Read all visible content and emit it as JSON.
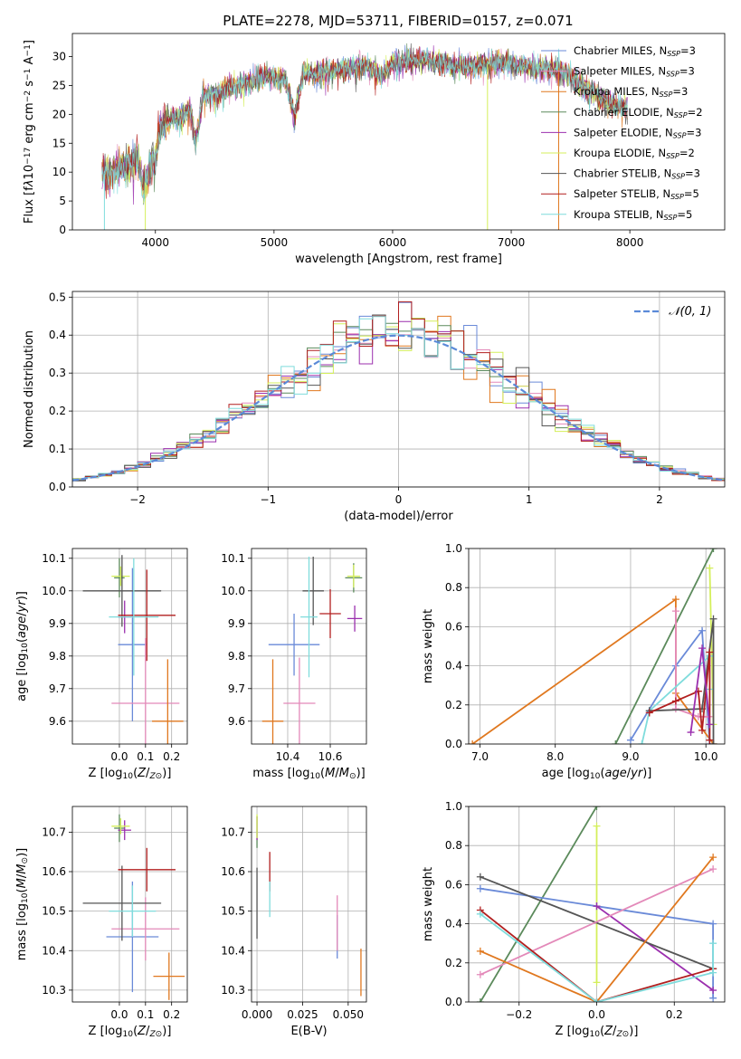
{
  "figure": {
    "title": "PLATE=2278, MJD=53711, FIBERID=0157, z=0.071"
  },
  "colors": {
    "c_miles": "#6a8ad8",
    "s_miles": "#e389b9",
    "k_miles": "#e0781f",
    "c_elodie": "#5b8a5b",
    "s_elodie": "#9b2fae",
    "k_elodie": "#d4ef5b",
    "c_stelib": "#555555",
    "s_stelib": "#b21f1f",
    "k_stelib": "#7fdcdc"
  },
  "chart_data": [
    {
      "id": "spectrum",
      "type": "line",
      "xlabel": "wavelength [Angstrom, rest frame]",
      "ylabel_parts": [
        "Flux [f",
        "λ",
        "10",
        "−17",
        " erg cm",
        "−2",
        " s",
        "−1",
        " A",
        "−1",
        "]"
      ],
      "xlim": [
        3300,
        8800
      ],
      "ylim": [
        0,
        34
      ],
      "xticks": [
        4000,
        5000,
        6000,
        7000,
        8000
      ],
      "yticks": [
        0,
        5,
        10,
        15,
        20,
        25,
        30
      ],
      "continuum": [
        [
          3550,
          9.5
        ],
        [
          3650,
          10.5
        ],
        [
          3750,
          11
        ],
        [
          3850,
          12.5
        ],
        [
          3900,
          7
        ],
        [
          3950,
          11
        ],
        [
          4000,
          12.5
        ],
        [
          4050,
          18
        ],
        [
          4100,
          19
        ],
        [
          4200,
          19.5
        ],
        [
          4300,
          20.5
        ],
        [
          4340,
          15
        ],
        [
          4400,
          23
        ],
        [
          4600,
          24.5
        ],
        [
          4800,
          25.5
        ],
        [
          4900,
          26.5
        ],
        [
          5100,
          26
        ],
        [
          5170,
          20
        ],
        [
          5250,
          27
        ],
        [
          5500,
          27.5
        ],
        [
          5800,
          28.5
        ],
        [
          5900,
          26.5
        ],
        [
          6000,
          29
        ],
        [
          6300,
          29.5
        ],
        [
          6500,
          28.5
        ],
        [
          6700,
          28.5
        ],
        [
          6900,
          29
        ],
        [
          7200,
          28
        ],
        [
          7400,
          28
        ],
        [
          7600,
          25
        ],
        [
          7700,
          23.5
        ],
        [
          7800,
          22.5
        ],
        [
          7900,
          21.5
        ],
        [
          7980,
          21
        ]
      ],
      "lines": [
        {
          "name_parts": [
            "Chabrier MILES, N",
            "SSP",
            "=3"
          ],
          "color": "c_miles"
        },
        {
          "name_parts": [
            "Salpeter MILES, N",
            "SSP",
            "=3"
          ],
          "color": "s_miles"
        },
        {
          "name_parts": [
            "Kroupa MILES, N",
            "SSP",
            "=3"
          ],
          "color": "k_miles"
        },
        {
          "name_parts": [
            "Chabrier ELODIE, N",
            "SSP",
            "=2"
          ],
          "color": "c_elodie"
        },
        {
          "name_parts": [
            "Salpeter ELODIE, N",
            "SSP",
            "=3"
          ],
          "color": "s_elodie"
        },
        {
          "name_parts": [
            "Kroupa ELODIE, N",
            "SSP",
            "=2"
          ],
          "color": "k_elodie"
        },
        {
          "name_parts": [
            "Chabrier STELIB, N",
            "SSP",
            "=3"
          ],
          "color": "c_stelib"
        },
        {
          "name_parts": [
            "Salpeter STELIB, N",
            "SSP",
            "=5"
          ],
          "color": "s_stelib"
        },
        {
          "name_parts": [
            "Kroupa STELIB, N",
            "SSP",
            "=5"
          ],
          "color": "k_stelib"
        }
      ],
      "legend_position": "upper right",
      "drop_lines": [
        {
          "x": 3570,
          "to": 0,
          "color": "k_stelib"
        },
        {
          "x": 3915,
          "to": 0,
          "color": "k_elodie"
        },
        {
          "x": 6800,
          "to": 0,
          "color": "k_elodie"
        },
        {
          "x": 7400,
          "to": 0,
          "color": "k_miles"
        }
      ]
    },
    {
      "id": "residuals",
      "type": "histogram",
      "xlabel": "(data-model)/error",
      "ylabel": "Normed distribution",
      "xlim": [
        -2.5,
        2.5
      ],
      "ylim": [
        0,
        0.515
      ],
      "xticks": [
        -2,
        -1,
        0,
        1,
        2
      ],
      "yticks": [
        0.0,
        0.1,
        0.2,
        0.3,
        0.4,
        0.5
      ],
      "grid": true,
      "bin_width": 0.1,
      "legend": "𝒩(0, 1)",
      "legend_position": "upper right",
      "gaussian_color": "#5b8ad8"
    },
    {
      "id": "z_age",
      "type": "errorbar",
      "xlabel_parts": [
        "Z [log",
        "10",
        "(",
        "Z",
        "/",
        "Z",
        "⊙",
        ")]"
      ],
      "ylabel_parts": [
        "age  [log",
        "10",
        "(",
        "age",
        "/",
        "yr",
        ")]"
      ],
      "xlim": [
        -0.18,
        0.26
      ],
      "ylim": [
        9.53,
        10.13
      ],
      "xticks": [
        0.0,
        0.1,
        0.2
      ],
      "yticks": [
        9.6,
        9.7,
        9.8,
        9.9,
        10.0,
        10.1
      ],
      "grid": true,
      "points": [
        {
          "color": "c_miles",
          "x": 0.05,
          "xerr": 0.055,
          "y": 9.835,
          "yerr": 0.235
        },
        {
          "color": "s_miles",
          "x": 0.1,
          "xerr": 0.13,
          "y": 9.655,
          "yerr": 0.2
        },
        {
          "color": "k_miles",
          "x": 0.185,
          "xerr": 0.06,
          "y": 9.6,
          "yerr": 0.19
        },
        {
          "color": "c_elodie",
          "x": 0.0,
          "xerr": 0.02,
          "y": 10.04,
          "yerr": 0.06
        },
        {
          "color": "s_elodie",
          "x": 0.02,
          "xerr": 0.025,
          "y": 9.92,
          "yerr": 0.05
        },
        {
          "color": "k_elodie",
          "x": 0.005,
          "xerr": 0.035,
          "y": 10.045,
          "yerr": 0.03
        },
        {
          "color": "c_stelib",
          "x": 0.01,
          "xerr": 0.15,
          "y": 10.0,
          "yerr": 0.11
        },
        {
          "color": "s_stelib",
          "x": 0.105,
          "xerr": 0.11,
          "y": 9.925,
          "yerr": 0.14
        },
        {
          "color": "k_stelib",
          "x": 0.055,
          "xerr": 0.095,
          "y": 9.92,
          "yerr": 0.18
        }
      ]
    },
    {
      "id": "mass_age",
      "type": "errorbar",
      "xlabel_parts": [
        "mass [log",
        "10",
        "(",
        "M",
        "/",
        "M",
        "⊙",
        ")]"
      ],
      "ylabel_parts": [],
      "xlim": [
        10.23,
        10.77
      ],
      "ylim": [
        9.53,
        10.13
      ],
      "xticks": [
        10.4,
        10.6
      ],
      "yticks": [
        9.6,
        9.7,
        9.8,
        9.9,
        10.0,
        10.1
      ],
      "grid": true,
      "points": [
        {
          "color": "c_miles",
          "x": 10.43,
          "xerr": 0.12,
          "y": 9.835,
          "yerr": 0.095
        },
        {
          "color": "s_miles",
          "x": 10.455,
          "xerr": 0.075,
          "y": 9.655,
          "yerr": 0.14
        },
        {
          "color": "k_miles",
          "x": 10.33,
          "xerr": 0.05,
          "y": 9.6,
          "yerr": 0.19
        },
        {
          "color": "c_elodie",
          "x": 10.71,
          "xerr": 0.04,
          "y": 10.04,
          "yerr": 0.045
        },
        {
          "color": "s_elodie",
          "x": 10.715,
          "xerr": 0.035,
          "y": 9.915,
          "yerr": 0.04
        },
        {
          "color": "k_elodie",
          "x": 10.71,
          "xerr": 0.03,
          "y": 10.045,
          "yerr": 0.035
        },
        {
          "color": "c_stelib",
          "x": 10.52,
          "xerr": 0.05,
          "y": 10.0,
          "yerr": 0.105
        },
        {
          "color": "s_stelib",
          "x": 10.6,
          "xerr": 0.05,
          "y": 9.93,
          "yerr": 0.075
        },
        {
          "color": "k_stelib",
          "x": 10.5,
          "xerr": 0.04,
          "y": 9.92,
          "yerr": 0.185
        }
      ]
    },
    {
      "id": "age_weight",
      "type": "line",
      "xlabel_parts": [
        "age  [log",
        "10",
        "(",
        "age",
        "/",
        "yr",
        ")]"
      ],
      "ylabel": "mass weight",
      "xlim": [
        6.85,
        10.25
      ],
      "ylim": [
        0,
        1
      ],
      "xticks": [
        7,
        8,
        9,
        10
      ],
      "yticks": [
        0.0,
        0.2,
        0.4,
        0.6,
        0.8,
        1.0
      ],
      "grid": true,
      "series": [
        {
          "color": "c_elodie",
          "points": [
            [
              8.8,
              0.0
            ],
            [
              10.1,
              1.0
            ]
          ]
        },
        {
          "color": "k_miles",
          "points": [
            [
              6.9,
              0.0
            ],
            [
              9.6,
              0.74
            ],
            [
              9.6,
              0.26
            ],
            [
              10.1,
              0.0
            ]
          ]
        },
        {
          "color": "c_miles",
          "points": [
            [
              9.0,
              0.02
            ],
            [
              9.6,
              0.4
            ],
            [
              9.95,
              0.58
            ],
            [
              10.05,
              0.0
            ]
          ]
        },
        {
          "color": "s_miles",
          "points": [
            [
              9.6,
              0.68
            ],
            [
              9.6,
              0.18
            ],
            [
              9.9,
              0.14
            ],
            [
              10.05,
              0.14
            ]
          ]
        },
        {
          "color": "k_elodie",
          "points": [
            [
              10.05,
              0.9
            ],
            [
              10.1,
              0.1
            ],
            [
              10.05,
              0.1
            ]
          ]
        },
        {
          "color": "k_stelib",
          "points": [
            [
              9.15,
              0.0
            ],
            [
              9.25,
              0.17
            ],
            [
              10.05,
              0.45
            ],
            [
              10.05,
              0.28
            ]
          ]
        },
        {
          "color": "c_stelib",
          "points": [
            [
              9.25,
              0.17
            ],
            [
              9.95,
              0.18
            ],
            [
              10.1,
              0.64
            ],
            [
              10.1,
              0.0
            ]
          ]
        },
        {
          "color": "s_stelib",
          "points": [
            [
              9.25,
              0.16
            ],
            [
              9.6,
              0.22
            ],
            [
              9.9,
              0.27
            ],
            [
              9.95,
              0.07
            ],
            [
              10.05,
              0.47
            ],
            [
              10.05,
              0.02
            ]
          ]
        },
        {
          "color": "s_elodie",
          "points": [
            [
              9.8,
              0.06
            ],
            [
              9.95,
              0.49
            ],
            [
              10.05,
              0.1
            ]
          ]
        }
      ]
    },
    {
      "id": "z_weight",
      "type": "line",
      "xlabel_parts": [
        "Z [log",
        "10",
        "(",
        "Z",
        "/",
        "Z",
        "⊙",
        ")]"
      ],
      "ylabel": "mass weight",
      "xlim": [
        -0.33,
        0.33
      ],
      "ylim": [
        0,
        1
      ],
      "xticks": [
        -0.2,
        0.0,
        0.2
      ],
      "yticks": [
        0.0,
        0.2,
        0.4,
        0.6,
        0.8,
        1.0
      ],
      "grid": true,
      "series": [
        {
          "color": "c_elodie",
          "points": [
            [
              -0.3,
              0.0
            ],
            [
              0.0,
              1.0
            ]
          ]
        },
        {
          "color": "k_elodie",
          "points": [
            [
              0.0,
              0.9
            ],
            [
              0.0,
              0.1
            ]
          ]
        },
        {
          "color": "c_miles",
          "points": [
            [
              -0.3,
              0.58
            ],
            [
              0.0,
              0.49
            ],
            [
              0.3,
              0.4
            ],
            [
              0.3,
              0.02
            ]
          ]
        },
        {
          "color": "s_elodie",
          "points": [
            [
              0.0,
              0.49
            ],
            [
              0.3,
              0.06
            ]
          ]
        },
        {
          "color": "c_stelib",
          "points": [
            [
              -0.3,
              0.64
            ],
            [
              0.3,
              0.17
            ]
          ]
        },
        {
          "color": "s_miles",
          "points": [
            [
              -0.3,
              0.14
            ],
            [
              0.3,
              0.68
            ]
          ]
        },
        {
          "color": "k_miles",
          "points": [
            [
              -0.3,
              0.26
            ],
            [
              0.0,
              0.0
            ],
            [
              0.3,
              0.74
            ]
          ]
        },
        {
          "color": "s_stelib",
          "points": [
            [
              -0.3,
              0.47
            ],
            [
              0.0,
              0.0
            ],
            [
              0.3,
              0.17
            ]
          ]
        },
        {
          "color": "k_stelib",
          "points": [
            [
              -0.3,
              0.45
            ],
            [
              0.0,
              0.0
            ],
            [
              0.3,
              0.15
            ],
            [
              0.3,
              0.3
            ]
          ]
        }
      ]
    },
    {
      "id": "z_mass",
      "type": "errorbar",
      "xlabel_parts": [
        "Z [log",
        "10",
        "(",
        "Z",
        "/",
        "Z",
        "⊙",
        ")]"
      ],
      "ylabel_parts": [
        "mass [log",
        "10",
        "(",
        "M",
        "/",
        "M",
        "⊙",
        ")]"
      ],
      "xlim": [
        -0.18,
        0.26
      ],
      "ylim": [
        10.27,
        10.765
      ],
      "xticks": [
        0.0,
        0.1,
        0.2
      ],
      "yticks": [
        10.3,
        10.4,
        10.5,
        10.6,
        10.7
      ],
      "grid": true,
      "points": [
        {
          "color": "c_miles",
          "x": 0.05,
          "xerr": 0.1,
          "y": 10.435,
          "yerr": 0.14
        },
        {
          "color": "s_miles",
          "x": 0.1,
          "xerr": 0.13,
          "y": 10.455,
          "yerr": 0.08
        },
        {
          "color": "k_miles",
          "x": 0.19,
          "xerr": 0.06,
          "y": 10.335,
          "yerr": 0.06
        },
        {
          "color": "c_elodie",
          "x": 0.0,
          "xerr": 0.02,
          "y": 10.71,
          "yerr": 0.035
        },
        {
          "color": "s_elodie",
          "x": 0.02,
          "xerr": 0.025,
          "y": 10.705,
          "yerr": 0.025
        },
        {
          "color": "k_elodie",
          "x": 0.005,
          "xerr": 0.035,
          "y": 10.715,
          "yerr": 0.02
        },
        {
          "color": "c_stelib",
          "x": 0.01,
          "xerr": 0.15,
          "y": 10.52,
          "yerr": 0.095
        },
        {
          "color": "s_stelib",
          "x": 0.105,
          "xerr": 0.11,
          "y": 10.605,
          "yerr": 0.055
        },
        {
          "color": "k_stelib",
          "x": 0.05,
          "xerr": 0.09,
          "y": 10.5,
          "yerr": 0.065
        }
      ]
    },
    {
      "id": "ebv_mass",
      "type": "errorbar",
      "xlabel": "E(B-V)",
      "ylabel_parts": [],
      "xlim": [
        -0.003,
        0.06
      ],
      "ylim": [
        10.27,
        10.765
      ],
      "xticks": [
        0.0,
        0.025,
        0.05
      ],
      "xticklabels": [
        "0.000",
        "0.025",
        "0.050"
      ],
      "yticks": [
        10.3,
        10.4,
        10.5,
        10.6,
        10.7
      ],
      "grid": true,
      "points": [
        {
          "color": "c_miles",
          "x": 0.044,
          "xerr": 0.0,
          "y": 10.435,
          "yerr": 0.055
        },
        {
          "color": "s_miles",
          "x": 0.044,
          "xerr": 0.0,
          "y": 10.47,
          "yerr": 0.07
        },
        {
          "color": "k_miles",
          "x": 0.057,
          "xerr": 0.0,
          "y": 10.345,
          "yerr": 0.06
        },
        {
          "color": "c_elodie",
          "x": 0.0,
          "xerr": 0.0,
          "y": 10.7,
          "yerr": 0.04
        },
        {
          "color": "s_elodie",
          "x": 0.0,
          "xerr": 0.0,
          "y": 10.71,
          "yerr": 0.03
        },
        {
          "color": "k_elodie",
          "x": 0.0,
          "xerr": 0.0,
          "y": 10.715,
          "yerr": 0.03
        },
        {
          "color": "c_stelib",
          "x": 0.0,
          "xerr": 0.0,
          "y": 10.52,
          "yerr": 0.09
        },
        {
          "color": "s_stelib",
          "x": 0.007,
          "xerr": 0.0,
          "y": 10.6,
          "yerr": 0.05
        },
        {
          "color": "k_stelib",
          "x": 0.007,
          "xerr": 0.0,
          "y": 10.53,
          "yerr": 0.045
        }
      ]
    }
  ]
}
